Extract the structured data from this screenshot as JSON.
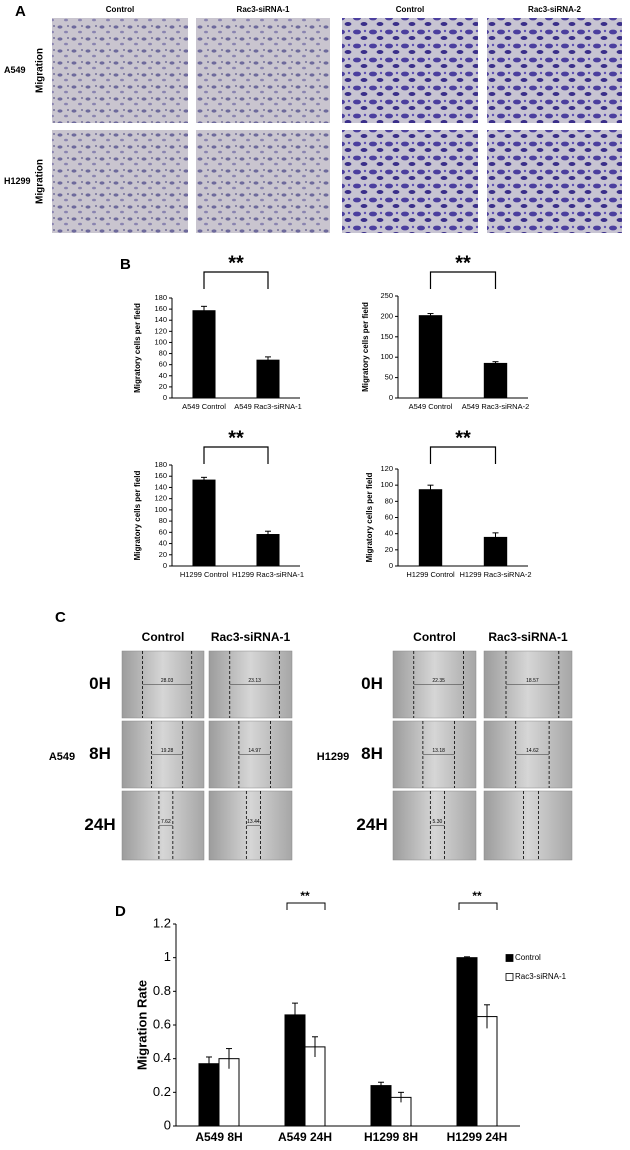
{
  "panel_labels": [
    "A",
    "B",
    "C",
    "D"
  ],
  "panel_a": {
    "columns": [
      "Control",
      "Rac3-siRNA-1",
      "Control",
      "Rac3-siRNA-2"
    ],
    "rows": [
      {
        "cell_line": "A549",
        "assay": "Migration"
      },
      {
        "cell_line": "H1299",
        "assay": "Migration"
      }
    ]
  },
  "panel_c": {
    "groups": [
      {
        "cell_line": "A549",
        "columns": [
          "Control",
          "Rac3-siRNA-1"
        ],
        "times": [
          "0H",
          "8H",
          "24H"
        ],
        "widths": [
          [
            "28.03",
            "23.13"
          ],
          [
            "19.28",
            "14.97"
          ],
          [
            "7.62",
            "13.44"
          ]
        ]
      },
      {
        "cell_line": "H1299",
        "columns": [
          "Control",
          "Rac3-siRNA-1"
        ],
        "times": [
          "0H",
          "8H",
          "24H"
        ],
        "widths": [
          [
            "22.35",
            "18.57"
          ],
          [
            "13.18",
            "14.62"
          ],
          [
            "5.30",
            null
          ]
        ]
      }
    ]
  },
  "chart_data": [
    {
      "type": "bar",
      "ylabel": "Migratory cells per field",
      "categories": [
        "A549 Control",
        "A549 Rac3-siRNA-1"
      ],
      "values": [
        158,
        69
      ],
      "errors": [
        7,
        5
      ],
      "color": "#000000",
      "ylim": [
        0,
        180
      ],
      "yticks": [
        0,
        20,
        40,
        60,
        80,
        100,
        120,
        140,
        160,
        180
      ],
      "annotation": "**"
    },
    {
      "type": "bar",
      "ylabel": "Migratory cells per field",
      "categories": [
        "A549 Control",
        "A549 Rac3-siRNA-2"
      ],
      "values": [
        203,
        86
      ],
      "errors": [
        4,
        3
      ],
      "color": "#000000",
      "ylim": [
        0,
        250
      ],
      "yticks": [
        0,
        50,
        100,
        150,
        200,
        250
      ],
      "annotation": "**"
    },
    {
      "type": "bar",
      "ylabel": "Migratory cells per field",
      "categories": [
        "H1299 Control",
        "H1299 Rac3-siRNA-1"
      ],
      "values": [
        154,
        57
      ],
      "errors": [
        4,
        5
      ],
      "color": "#000000",
      "ylim": [
        0,
        180
      ],
      "yticks": [
        0,
        20,
        40,
        60,
        80,
        100,
        120,
        140,
        160,
        180
      ],
      "annotation": "**"
    },
    {
      "type": "bar",
      "ylabel": "Migratory cells per field",
      "categories": [
        "H1299 Control",
        "H1299 Rac3-siRNA-2"
      ],
      "values": [
        95,
        36
      ],
      "errors": [
        5,
        5
      ],
      "color": "#000000",
      "ylim": [
        0,
        120
      ],
      "yticks": [
        0,
        20,
        40,
        60,
        80,
        100,
        120
      ],
      "annotation": "**"
    },
    {
      "type": "grouped-bar",
      "ylabel": "Migration Rate",
      "categories": [
        "A549 8H",
        "A549 24H",
        "H1299 8H",
        "H1299 24H"
      ],
      "series": [
        {
          "name": "Control",
          "color": "#000000",
          "values": [
            0.37,
            0.66,
            0.24,
            1.0
          ],
          "errors": [
            0.04,
            0.07,
            0.02,
            0.005
          ]
        },
        {
          "name": "Rac3-siRNA-1",
          "color": "#ffffff",
          "values": [
            0.4,
            0.47,
            0.17,
            0.65
          ],
          "errors": [
            0.06,
            0.06,
            0.03,
            0.07
          ]
        }
      ],
      "significance": [
        null,
        "**",
        null,
        "**"
      ],
      "ylim": [
        0,
        1.2
      ],
      "yticks": [
        0,
        0.2,
        0.4,
        0.6,
        0.8,
        1,
        1.2
      ],
      "legend": "right"
    }
  ]
}
